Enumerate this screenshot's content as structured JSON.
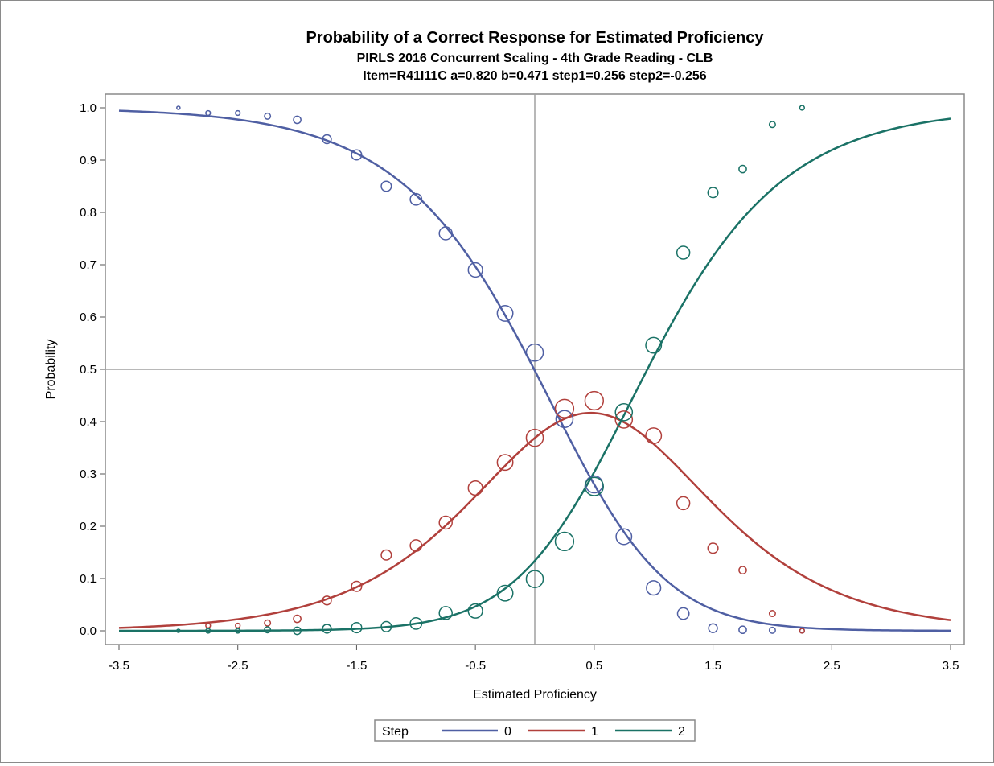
{
  "chart_data": {
    "type": "line",
    "title": "Probability of a Correct Response for Estimated Proficiency",
    "subtitles": [
      "PIRLS 2016 Concurrent Scaling - 4th Grade Reading - CLB",
      "Item=R41I11C a=0.820 b=0.471 step1=0.256 step2=-0.256"
    ],
    "xlabel": "Estimated Proficiency",
    "ylabel": "Probability",
    "xlim": [
      -3.5,
      3.5
    ],
    "ylim": [
      0,
      1
    ],
    "xticks": [
      "-3.5",
      "-2.5",
      "-1.5",
      "-0.5",
      "0.5",
      "1.5",
      "2.5",
      "3.5"
    ],
    "yticks": [
      "0.0",
      "0.1",
      "0.2",
      "0.3",
      "0.4",
      "0.5",
      "0.6",
      "0.7",
      "0.8",
      "0.9",
      "1.0"
    ],
    "reference_lines": {
      "x": 0,
      "y": 0.5
    },
    "grid": false,
    "model": {
      "a": 0.82,
      "b": 0.471,
      "step1": 0.256,
      "step2": -0.256
    },
    "legend": {
      "title": "Step",
      "position": "bottom-center"
    },
    "series": [
      {
        "name": "0",
        "color": "#4f5fa3",
        "observed": [
          {
            "x": -3.0,
            "y": 1.0,
            "size": 1
          },
          {
            "x": -2.75,
            "y": 0.99,
            "size": 2
          },
          {
            "x": -2.5,
            "y": 0.99,
            "size": 2
          },
          {
            "x": -2.25,
            "y": 0.984,
            "size": 3
          },
          {
            "x": -2.0,
            "y": 0.977,
            "size": 4
          },
          {
            "x": -1.75,
            "y": 0.94,
            "size": 5
          },
          {
            "x": -1.5,
            "y": 0.91,
            "size": 6
          },
          {
            "x": -1.25,
            "y": 0.85,
            "size": 6
          },
          {
            "x": -1.0,
            "y": 0.825,
            "size": 7
          },
          {
            "x": -0.75,
            "y": 0.76,
            "size": 8
          },
          {
            "x": -0.5,
            "y": 0.69,
            "size": 9
          },
          {
            "x": -0.25,
            "y": 0.607,
            "size": 10
          },
          {
            "x": 0.0,
            "y": 0.532,
            "size": 11
          },
          {
            "x": 0.25,
            "y": 0.405,
            "size": 11
          },
          {
            "x": 0.5,
            "y": 0.28,
            "size": 11
          },
          {
            "x": 0.75,
            "y": 0.18,
            "size": 10
          },
          {
            "x": 1.0,
            "y": 0.082,
            "size": 9
          },
          {
            "x": 1.25,
            "y": 0.033,
            "size": 7
          },
          {
            "x": 1.5,
            "y": 0.005,
            "size": 5
          },
          {
            "x": 1.75,
            "y": 0.002,
            "size": 4
          },
          {
            "x": 2.0,
            "y": 0.001,
            "size": 3
          },
          {
            "x": 2.25,
            "y": 0.0,
            "size": 2
          }
        ]
      },
      {
        "name": "1",
        "color": "#b1403c",
        "observed": [
          {
            "x": -2.75,
            "y": 0.01,
            "size": 2
          },
          {
            "x": -2.5,
            "y": 0.01,
            "size": 2
          },
          {
            "x": -2.25,
            "y": 0.015,
            "size": 3
          },
          {
            "x": -2.0,
            "y": 0.023,
            "size": 4
          },
          {
            "x": -1.75,
            "y": 0.058,
            "size": 5
          },
          {
            "x": -1.5,
            "y": 0.085,
            "size": 6
          },
          {
            "x": -1.25,
            "y": 0.145,
            "size": 6
          },
          {
            "x": -1.0,
            "y": 0.163,
            "size": 7
          },
          {
            "x": -0.75,
            "y": 0.207,
            "size": 8
          },
          {
            "x": -0.5,
            "y": 0.273,
            "size": 9
          },
          {
            "x": -0.25,
            "y": 0.322,
            "size": 10
          },
          {
            "x": 0.0,
            "y": 0.369,
            "size": 11
          },
          {
            "x": 0.25,
            "y": 0.425,
            "size": 12
          },
          {
            "x": 0.5,
            "y": 0.44,
            "size": 12
          },
          {
            "x": 0.75,
            "y": 0.404,
            "size": 11
          },
          {
            "x": 1.0,
            "y": 0.373,
            "size": 10
          },
          {
            "x": 1.25,
            "y": 0.244,
            "size": 8
          },
          {
            "x": 1.5,
            "y": 0.158,
            "size": 6
          },
          {
            "x": 1.75,
            "y": 0.116,
            "size": 4
          },
          {
            "x": 2.0,
            "y": 0.033,
            "size": 3
          },
          {
            "x": 2.25,
            "y": 0.0,
            "size": 2
          }
        ]
      },
      {
        "name": "2",
        "color": "#1a7266",
        "observed": [
          {
            "x": -3.0,
            "y": 0.0,
            "size": 1
          },
          {
            "x": -2.75,
            "y": 0.0,
            "size": 2
          },
          {
            "x": -2.5,
            "y": 0.0,
            "size": 2
          },
          {
            "x": -2.25,
            "y": 0.002,
            "size": 3
          },
          {
            "x": -2.0,
            "y": 0.0,
            "size": 4
          },
          {
            "x": -1.75,
            "y": 0.004,
            "size": 5
          },
          {
            "x": -1.5,
            "y": 0.006,
            "size": 6
          },
          {
            "x": -1.25,
            "y": 0.008,
            "size": 6
          },
          {
            "x": -1.0,
            "y": 0.014,
            "size": 7
          },
          {
            "x": -0.75,
            "y": 0.034,
            "size": 8
          },
          {
            "x": -0.5,
            "y": 0.038,
            "size": 9
          },
          {
            "x": -0.25,
            "y": 0.072,
            "size": 10
          },
          {
            "x": 0.0,
            "y": 0.099,
            "size": 11
          },
          {
            "x": 0.25,
            "y": 0.171,
            "size": 12
          },
          {
            "x": 0.5,
            "y": 0.276,
            "size": 12
          },
          {
            "x": 0.75,
            "y": 0.418,
            "size": 11
          },
          {
            "x": 1.0,
            "y": 0.546,
            "size": 10
          },
          {
            "x": 1.25,
            "y": 0.723,
            "size": 8
          },
          {
            "x": 1.5,
            "y": 0.838,
            "size": 6
          },
          {
            "x": 1.75,
            "y": 0.883,
            "size": 4
          },
          {
            "x": 2.0,
            "y": 0.968,
            "size": 3
          },
          {
            "x": 2.25,
            "y": 1.0,
            "size": 2
          }
        ]
      }
    ]
  }
}
